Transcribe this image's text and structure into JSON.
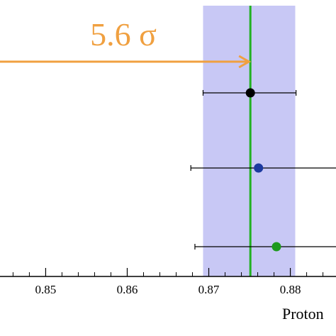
{
  "chart_data": {
    "type": "scatter",
    "title": "",
    "xlabel": "Proton",
    "ylabel": "",
    "xlim": [
      0.8444,
      0.8856
    ],
    "x_ticks": [
      {
        "value": 0.85,
        "label": "0.85"
      },
      {
        "value": 0.86,
        "label": "0.86"
      },
      {
        "value": 0.87,
        "label": "0.87"
      },
      {
        "value": 0.88,
        "label": "0.88"
      }
    ],
    "minor_tick_step": 0.002,
    "grid": false,
    "band": {
      "from": 0.8693,
      "to": 0.8806,
      "color": "#c8c8f5"
    },
    "reference_line": {
      "x": 0.8751,
      "color": "#22b122"
    },
    "annotation": {
      "text": "5.6 σ",
      "color": "#f0a040"
    },
    "points": [
      {
        "x": 0.8751,
        "x_low": 0.8693,
        "x_high": 0.8807,
        "row": 1,
        "color": "#000000"
      },
      {
        "x": 0.8761,
        "x_low": 0.8678,
        "x_high": 0.886,
        "row": 2,
        "color": "#1c3aa0"
      },
      {
        "x": 0.8783,
        "x_low": 0.8683,
        "x_high": 0.886,
        "row": 3,
        "color": "#1e9a1e"
      }
    ]
  }
}
